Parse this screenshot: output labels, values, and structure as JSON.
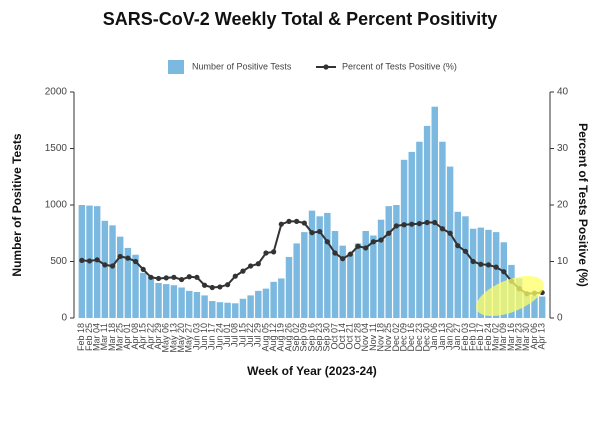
{
  "chart_data": {
    "type": "bar_line",
    "title": "SARS-CoV-2 Weekly Total & Percent Positivity",
    "x_label": "Week of Year (2023-24)",
    "y_label": "Number of Positive Tests",
    "y2_label": "Percent of Tests Positive (%)",
    "categories": [
      "Feb 18",
      "Feb 25",
      "Mar 04",
      "Mar 11",
      "Mar 18",
      "Mar 25",
      "Apr 01",
      "Apr 08",
      "Apr 15",
      "Apr 22",
      "Apr 29",
      "May 06",
      "May 13",
      "May 20",
      "May 27",
      "Jun 03",
      "Jun 10",
      "Jun 17",
      "Jun 24",
      "Jul 01",
      "Jul 08",
      "Jul 15",
      "Jul 22",
      "Jul 29",
      "Aug 05",
      "Aug 12",
      "Aug 19",
      "Aug 26",
      "Sep 02",
      "Sep 09",
      "Sep 16",
      "Sep 23",
      "Sep 30",
      "Oct 07",
      "Oct 14",
      "Oct 21",
      "Oct 28",
      "Nov 04",
      "Nov 11",
      "Nov 18",
      "Nov 25",
      "Dec 02",
      "Dec 09",
      "Dec 16",
      "Dec 23",
      "Dec 30",
      "Jan 06",
      "Jan 13",
      "Jan 20",
      "Jan 27",
      "Feb 03",
      "Feb 10",
      "Feb 17",
      "Feb 24",
      "Mar 02",
      "Mar 09",
      "Mar 16",
      "Mar 23",
      "Mar 30",
      "Apr 06",
      "Apr 13"
    ],
    "series": [
      {
        "name": "Number of Positive Tests",
        "color": "#7cb9e0",
        "kind": "bar",
        "values": [
          1000,
          995,
          990,
          860,
          820,
          720,
          620,
          560,
          400,
          370,
          310,
          300,
          290,
          270,
          240,
          230,
          200,
          150,
          140,
          135,
          130,
          170,
          200,
          240,
          260,
          320,
          350,
          540,
          660,
          760,
          950,
          900,
          930,
          770,
          640,
          570,
          660,
          770,
          730,
          870,
          990,
          1000,
          1400,
          1470,
          1560,
          1700,
          1870,
          1560,
          1340,
          940,
          900,
          790,
          800,
          780,
          760,
          670,
          470,
          350,
          230,
          200,
          190
        ]
      },
      {
        "name": "Percent of Tests Positive (%)",
        "color": "#333333",
        "kind": "line",
        "axis": "y2",
        "values": [
          10.2,
          10.1,
          10.3,
          9.4,
          9.2,
          10.9,
          10.6,
          10.0,
          8.6,
          7.2,
          7.0,
          7.1,
          7.2,
          6.8,
          7.3,
          7.2,
          5.8,
          5.4,
          5.5,
          5.9,
          7.4,
          8.3,
          9.2,
          9.6,
          11.5,
          11.7,
          16.6,
          17.1,
          17.1,
          16.8,
          15.1,
          15.3,
          13.5,
          11.5,
          10.5,
          11.3,
          12.7,
          12.4,
          13.5,
          13.8,
          15.0,
          16.3,
          16.5,
          16.6,
          16.7,
          16.9,
          16.9,
          15.8,
          15.0,
          12.8,
          11.8,
          10.0,
          9.5,
          9.4,
          9.0,
          8.2,
          6.5,
          5.2,
          4.3,
          4.4,
          4.5
        ]
      }
    ],
    "ylim": [
      0,
      2000
    ],
    "yticks": [
      0,
      500,
      1000,
      1500,
      2000
    ],
    "y2lim": [
      0,
      40
    ],
    "y2ticks": [
      0,
      10,
      20,
      30,
      40
    ],
    "legend": "top"
  }
}
